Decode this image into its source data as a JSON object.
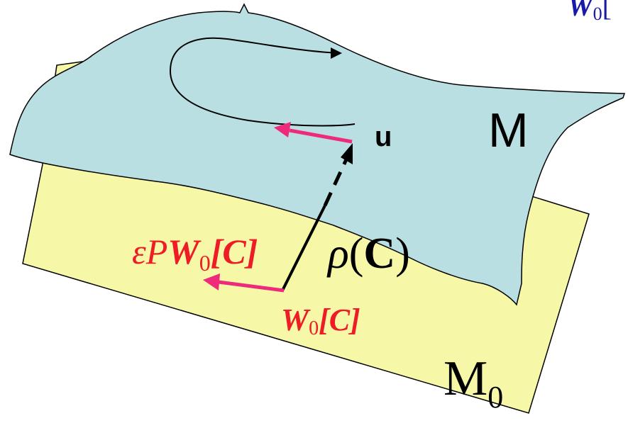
{
  "colors": {
    "manifold_m0_fill": "#f7f7a8",
    "manifold_m_fill": "#b9dfe3",
    "outline": "#000000",
    "red_vector": "#ee2a7b",
    "red_text": "#ee1c25",
    "blue_text": "#1a1aa8"
  },
  "labels": {
    "manifold_m": "M",
    "manifold_m0": "M",
    "manifold_m0_sub": "0",
    "point_u": "u",
    "rho_c": {
      "rho": "ρ",
      "open": "(",
      "c": "C",
      "close": ")"
    },
    "eps_pw": {
      "eps_p": "εP",
      "w": "W",
      "sub": "0",
      "bracket": "[C]"
    },
    "w0c": {
      "w": "W",
      "sub": "0",
      "bracket": "[C]"
    },
    "top_right_clipped": {
      "w": "W",
      "sub": "0",
      "rest": "["
    }
  },
  "icons": {
    "loop": "curved-loop-arrow",
    "tangent_upper": "red-tangent-arrow",
    "tangent_lower": "red-tangent-arrow",
    "rho_arrow": "dashed-arrow"
  }
}
